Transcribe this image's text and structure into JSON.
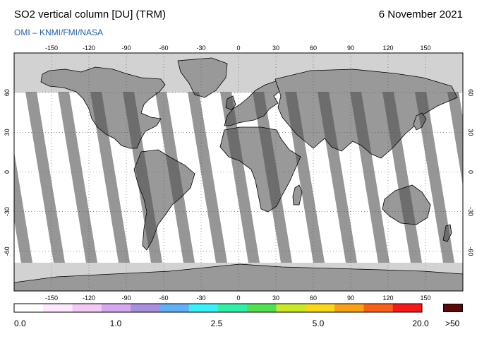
{
  "header": {
    "title": "SO2 vertical column [DU] (TRM)",
    "date": "6 November 2021",
    "credit": "OMI  –  KNMI/FMI/NASA"
  },
  "map": {
    "lon_ticks": [
      "-150",
      "-120",
      "-90",
      "-60",
      "-30",
      "0",
      "30",
      "60",
      "90",
      "120",
      "150"
    ],
    "lat_ticks": [
      "60",
      "30",
      "0",
      "-30",
      "-60"
    ],
    "colors": {
      "ocean_coverage": "#ffffff",
      "orbit_gap": "#d2d2d2",
      "land": "#999999",
      "land_gap": "#7f7f7f"
    }
  },
  "colorbar": {
    "labels": [
      "0.0",
      "1.0",
      "2.5",
      "5.0",
      "20.0"
    ],
    "max_label": ">50",
    "max_color": "#5a0808",
    "colors": [
      "#ffffff",
      "#fde8fd",
      "#f4c8f4",
      "#d6a8f0",
      "#a890e0",
      "#60b0f8",
      "#38f0f8",
      "#30f0a8",
      "#50e050",
      "#c8e828",
      "#f8d818",
      "#f8a018",
      "#f86018",
      "#f81818"
    ]
  }
}
